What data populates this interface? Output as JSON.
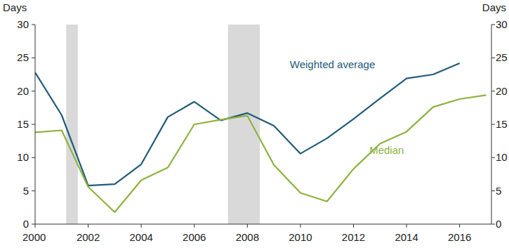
{
  "chart_data": {
    "type": "line",
    "y_label": "Days",
    "y2_label": "Days",
    "x": [
      2000,
      2001,
      2002,
      2003,
      2004,
      2005,
      2006,
      2007,
      2008,
      2009,
      2010,
      2011,
      2012,
      2013,
      2014,
      2015,
      2016,
      2017
    ],
    "series": [
      {
        "name": "Weighted average",
        "color": "#1f5c7a",
        "values": [
          22.8,
          16.4,
          5.8,
          6.0,
          9.0,
          16.1,
          18.4,
          15.6,
          16.7,
          14.8,
          10.6,
          12.9,
          15.8,
          18.9,
          21.9,
          22.5,
          24.2,
          null
        ]
      },
      {
        "name": "Median",
        "color": "#8db33f",
        "values": [
          13.8,
          14.1,
          5.6,
          1.8,
          6.6,
          8.5,
          15.0,
          15.7,
          16.3,
          8.9,
          4.7,
          3.4,
          8.3,
          12.1,
          13.9,
          17.6,
          18.8,
          19.4
        ]
      }
    ],
    "shaded_periods": [
      [
        2001.17,
        2001.61
      ],
      [
        2007.27,
        2008.47
      ]
    ],
    "xlim": [
      2000,
      2017.2
    ],
    "xticks": [
      2000,
      2002,
      2004,
      2006,
      2008,
      2010,
      2012,
      2014,
      2016
    ],
    "ylim": [
      0,
      30
    ],
    "yticks": [
      0,
      5,
      10,
      15,
      20,
      25,
      30
    ],
    "y2lim": [
      0,
      30
    ],
    "y2ticks": [
      0,
      5,
      10,
      15,
      20,
      25,
      30
    ],
    "grid": false
  }
}
